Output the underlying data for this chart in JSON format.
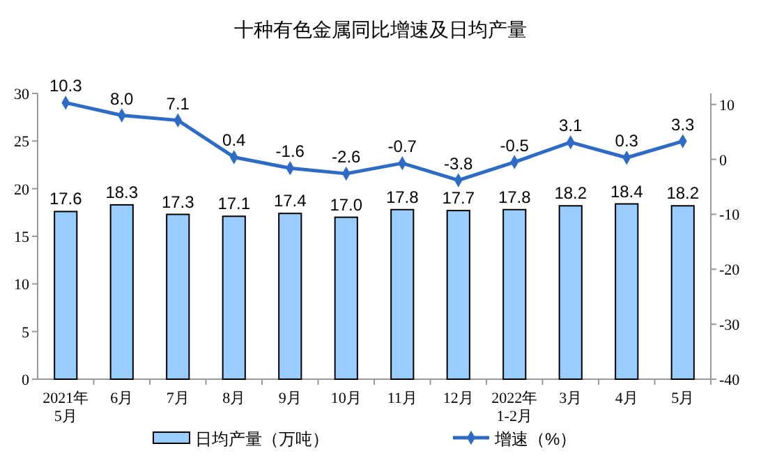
{
  "chart_data": {
    "type": "bar",
    "title": "十种有色金属同比增速及日均产量",
    "categories": [
      "2021年\n5月",
      "6月",
      "7月",
      "8月",
      "9月",
      "10月",
      "11月",
      "12月",
      "2022年\n1-2月",
      "3月",
      "4月",
      "5月"
    ],
    "series": [
      {
        "name": "日均产量（万吨）",
        "color": "#99ccff",
        "values": [
          17.6,
          18.3,
          17.3,
          17.1,
          17.4,
          17.0,
          17.8,
          17.7,
          17.8,
          18.2,
          18.4,
          18.2
        ],
        "value_labels": [
          "17.6",
          "18.3",
          "17.3",
          "17.1",
          "17.4",
          "17.0",
          "17.8",
          "17.7",
          "17.8",
          "18.2",
          "18.4",
          "18.2"
        ]
      },
      {
        "name": "增速（%）",
        "type": "line",
        "axis": "y2",
        "color": "#2e6bc4",
        "marker": "diamond",
        "values": [
          10.3,
          8.0,
          7.1,
          0.4,
          -1.6,
          -2.6,
          -0.7,
          -3.8,
          -0.5,
          3.1,
          0.3,
          3.3
        ],
        "value_labels": [
          "10.3",
          "8.0",
          "7.1",
          "0.4",
          "-1.6",
          "-2.6",
          "-0.7",
          "-3.8",
          "-0.5",
          "3.1",
          "0.3",
          "3.3"
        ]
      }
    ],
    "ylim": [
      0,
      30
    ],
    "yticks": [
      0,
      5,
      10,
      15,
      20,
      25,
      30
    ],
    "y2lim": [
      -40,
      12
    ],
    "y2ticks": [
      -40,
      -30,
      -20,
      -10,
      0,
      10
    ],
    "legend": "bottom",
    "grid": false
  }
}
